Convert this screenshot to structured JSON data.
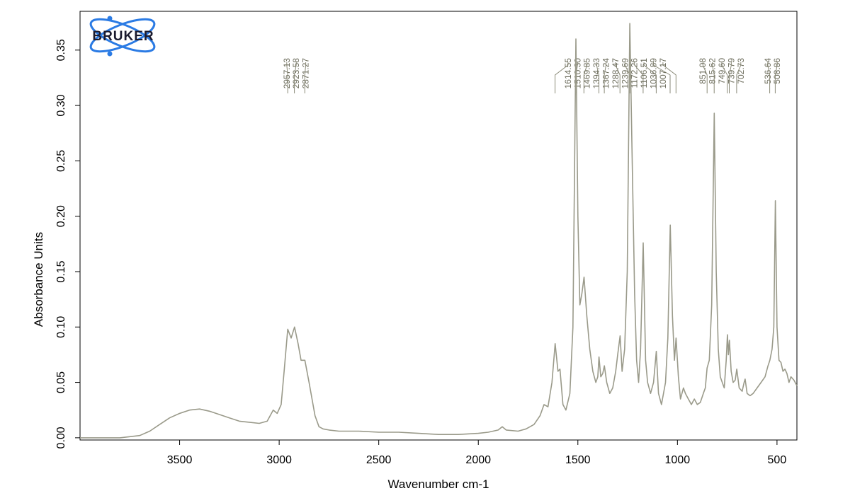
{
  "brand": {
    "logo_text": "BRUKER",
    "accent_color": "#1e6fd9"
  },
  "colors": {
    "trace": "#9a9a8a",
    "axis": "#000000",
    "peak_label": "#6b6b5a"
  },
  "chart_data": {
    "type": "line",
    "title": "",
    "xlabel": "Wavenumber cm-1",
    "ylabel": "Absorbance Units",
    "xlim": [
      4000,
      400
    ],
    "x_reversed": true,
    "ylim": [
      -0.002,
      0.385
    ],
    "grid": false,
    "x_ticks": [
      3500,
      3000,
      2500,
      2000,
      1500,
      1000,
      500
    ],
    "x_tick_labels": [
      "3500",
      "3000",
      "2500",
      "2000",
      "1500",
      "1000",
      "500"
    ],
    "y_ticks": [
      0.0,
      0.05,
      0.1,
      0.15,
      0.2,
      0.25,
      0.3,
      0.35
    ],
    "y_tick_labels": [
      "0.00",
      "0.05",
      "0.10",
      "0.15",
      "0.20",
      "0.25",
      "0.30",
      "0.35"
    ],
    "peak_labels": [
      "2957.13",
      "2923.58",
      "2871.27",
      "1614.55",
      "1510.30",
      "1469.85",
      "1394.33",
      "1367.24",
      "1288.47",
      "1239.69",
      "1172.26",
      "1106.51",
      "1036.89",
      "1007.17",
      "851.08",
      "815.62",
      "749.60",
      "739.79",
      "702.73",
      "536.64",
      "508.86"
    ],
    "peak_positions": [
      2957.13,
      2923.58,
      2871.27,
      1614.55,
      1510.3,
      1469.85,
      1394.33,
      1367.24,
      1288.47,
      1239.69,
      1172.26,
      1106.51,
      1036.89,
      1007.17,
      851.08,
      815.62,
      749.6,
      739.79,
      702.73,
      536.64,
      508.86
    ],
    "series": [
      {
        "x": [
          4000,
          3900,
          3800,
          3700,
          3650,
          3600,
          3550,
          3500,
          3450,
          3400,
          3350,
          3300,
          3250,
          3200,
          3150,
          3100,
          3060,
          3030,
          3010,
          2990,
          2975,
          2957,
          2940,
          2923,
          2905,
          2890,
          2871,
          2850,
          2820,
          2800,
          2780,
          2750,
          2700,
          2600,
          2500,
          2400,
          2300,
          2200,
          2100,
          2000,
          1950,
          1900,
          1880,
          1860,
          1800,
          1760,
          1720,
          1690,
          1670,
          1650,
          1630,
          1614,
          1600,
          1590,
          1575,
          1560,
          1540,
          1525,
          1510,
          1500,
          1490,
          1480,
          1469,
          1455,
          1440,
          1425,
          1410,
          1400,
          1394,
          1385,
          1375,
          1367,
          1355,
          1340,
          1325,
          1310,
          1300,
          1288,
          1278,
          1265,
          1252,
          1239,
          1228,
          1215,
          1205,
          1195,
          1185,
          1172,
          1160,
          1150,
          1135,
          1120,
          1106,
          1095,
          1080,
          1060,
          1048,
          1036,
          1025,
          1015,
          1007,
          995,
          985,
          970,
          960,
          945,
          930,
          915,
          900,
          885,
          870,
          860,
          851,
          840,
          828,
          815,
          805,
          795,
          785,
          775,
          765,
          755,
          749,
          744,
          739,
          730,
          720,
          710,
          702,
          690,
          675,
          665,
          660,
          650,
          635,
          620,
          600,
          580,
          560,
          545,
          536,
          525,
          516,
          508,
          500,
          490,
          480,
          470,
          460,
          450,
          440,
          430,
          415,
          400
        ],
        "y": [
          0.0,
          0.0,
          0.0,
          0.002,
          0.006,
          0.012,
          0.018,
          0.022,
          0.025,
          0.026,
          0.024,
          0.021,
          0.018,
          0.015,
          0.014,
          0.013,
          0.015,
          0.025,
          0.022,
          0.03,
          0.06,
          0.098,
          0.09,
          0.1,
          0.085,
          0.07,
          0.07,
          0.05,
          0.02,
          0.01,
          0.008,
          0.007,
          0.006,
          0.006,
          0.005,
          0.005,
          0.004,
          0.003,
          0.003,
          0.004,
          0.005,
          0.007,
          0.01,
          0.007,
          0.006,
          0.008,
          0.012,
          0.02,
          0.03,
          0.028,
          0.05,
          0.085,
          0.06,
          0.062,
          0.03,
          0.025,
          0.04,
          0.1,
          0.36,
          0.2,
          0.12,
          0.13,
          0.145,
          0.11,
          0.08,
          0.06,
          0.05,
          0.055,
          0.073,
          0.055,
          0.058,
          0.065,
          0.05,
          0.04,
          0.045,
          0.06,
          0.075,
          0.092,
          0.06,
          0.08,
          0.15,
          0.374,
          0.26,
          0.13,
          0.07,
          0.05,
          0.08,
          0.176,
          0.07,
          0.05,
          0.04,
          0.05,
          0.078,
          0.04,
          0.03,
          0.05,
          0.09,
          0.192,
          0.11,
          0.07,
          0.09,
          0.055,
          0.035,
          0.045,
          0.04,
          0.035,
          0.03,
          0.035,
          0.03,
          0.032,
          0.04,
          0.045,
          0.063,
          0.07,
          0.12,
          0.293,
          0.15,
          0.08,
          0.055,
          0.05,
          0.045,
          0.07,
          0.093,
          0.075,
          0.088,
          0.06,
          0.05,
          0.052,
          0.062,
          0.045,
          0.042,
          0.05,
          0.053,
          0.04,
          0.038,
          0.04,
          0.045,
          0.05,
          0.055,
          0.065,
          0.07,
          0.08,
          0.1,
          0.214,
          0.1,
          0.07,
          0.068,
          0.06,
          0.062,
          0.058,
          0.05,
          0.055,
          0.052,
          0.047
        ]
      }
    ]
  }
}
